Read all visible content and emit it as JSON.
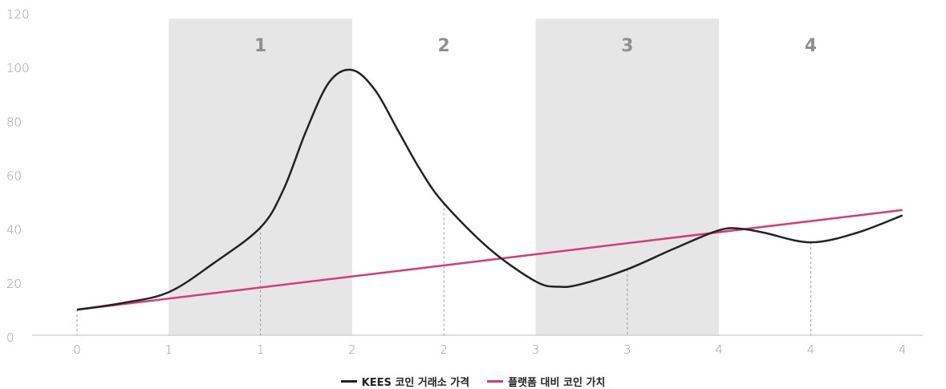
{
  "chart_data": {
    "type": "line",
    "ylim": [
      0,
      120
    ],
    "y_ticks": [
      "0",
      "20",
      "40",
      "60",
      "80",
      "100",
      "120"
    ],
    "x_tick_labels": [
      "0",
      "1",
      "1",
      "2",
      "2",
      "3",
      "3",
      "4",
      "4",
      "4"
    ],
    "phases": [
      {
        "label": "1",
        "shaded": true
      },
      {
        "label": "2",
        "shaded": false
      },
      {
        "label": "3",
        "shaded": true
      },
      {
        "label": "4",
        "shaded": false
      }
    ],
    "series": [
      {
        "name": "KEES 코인 거래소 가격",
        "color": "#222222",
        "points": [
          [
            0,
            9.5
          ],
          [
            0.5,
            12
          ],
          [
            1,
            16
          ],
          [
            1.5,
            27
          ],
          [
            2,
            40
          ],
          [
            2.25,
            54
          ],
          [
            2.5,
            76
          ],
          [
            2.75,
            94
          ],
          [
            3,
            98.5
          ],
          [
            3.25,
            91
          ],
          [
            3.5,
            76
          ],
          [
            3.75,
            61
          ],
          [
            4,
            49
          ],
          [
            4.5,
            32
          ],
          [
            5,
            20
          ],
          [
            5.25,
            18
          ],
          [
            5.5,
            19
          ],
          [
            6,
            24.5
          ],
          [
            6.5,
            32
          ],
          [
            7,
            39
          ],
          [
            7.25,
            39.5
          ],
          [
            7.5,
            38
          ],
          [
            8,
            34.5
          ],
          [
            8.5,
            38
          ],
          [
            9,
            44.5
          ]
        ]
      },
      {
        "name": "플랫폼 대비 코인 가치",
        "color": "#d63a7a",
        "points": [
          [
            0,
            9.5
          ],
          [
            9,
            46.5
          ]
        ]
      }
    ],
    "markers": [
      2,
      4,
      6,
      8
    ]
  },
  "legend": {
    "item1": "KEES 코인 거래소 가격",
    "item2": "플랫폼 대비 코인 가치"
  }
}
